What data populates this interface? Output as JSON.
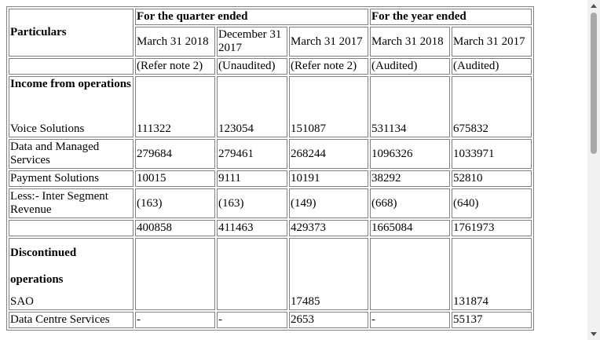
{
  "table": {
    "header": {
      "particulars": "Particulars",
      "quarter": "For the quarter ended",
      "year": "For the year ended",
      "dates": [
        "March 31 2018",
        "December 31 2017",
        "March 31 2017",
        "March 31 2018",
        "March 31 2017"
      ],
      "notes": [
        "(Refer note 2)",
        "(Unaudited)",
        "(Refer note 2)",
        "(Audited)",
        "(Audited)"
      ]
    },
    "rows": [
      {
        "heading": "Income from operations",
        "label": "Voice Solutions",
        "values": [
          111322,
          123054,
          151087,
          531134,
          675832
        ]
      },
      {
        "label": "Data and Managed Services",
        "values": [
          279684,
          279461,
          268244,
          1096326,
          1033971
        ]
      },
      {
        "label": "Payment Solutions",
        "values": [
          10015,
          9111,
          10191,
          38292,
          52810
        ]
      },
      {
        "label": "Less:- Inter Segment Revenue",
        "values": [
          "(163)",
          "(163)",
          "(149)",
          "(668)",
          "(640)"
        ]
      },
      {
        "label": null,
        "values": [
          400858,
          411463,
          429373,
          1665084,
          1761973
        ]
      },
      {
        "heading": "Discontinued operations",
        "label": "SAO",
        "values": [
          null,
          null,
          17485,
          null,
          131874
        ]
      },
      {
        "label": "Data Centre Services",
        "values": [
          "-",
          "-",
          2653,
          "-",
          55137
        ]
      }
    ]
  }
}
